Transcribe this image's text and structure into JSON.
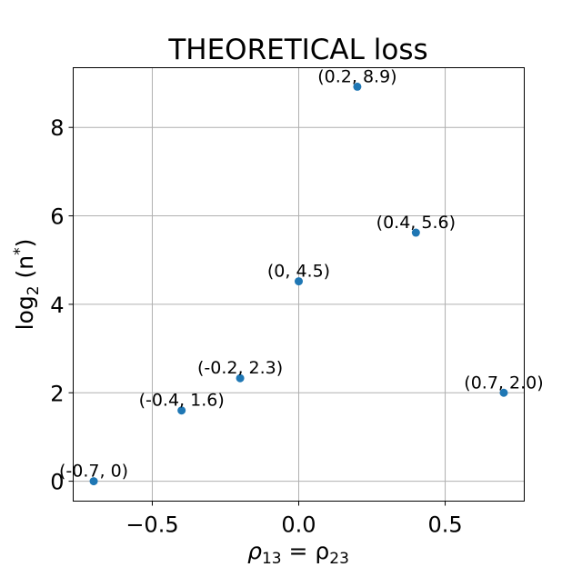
{
  "chart_data": {
    "type": "scatter",
    "title": "THEORETICAL loss",
    "xlabel_prefix": "ρ",
    "xlabel_sub1": "13",
    "xlabel_mid": " = ρ",
    "xlabel_sub2": "23",
    "ylabel_fn": "log",
    "ylabel_fn_sub": "2",
    "ylabel_var": " (n",
    "ylabel_sup": "*",
    "ylabel_close": ")",
    "xlim": [
      -0.77,
      0.77
    ],
    "ylim": [
      -0.45,
      9.35
    ],
    "x_ticks": [
      -0.5,
      0.0,
      0.5
    ],
    "x_tick_labels": [
      "−0.5",
      "0.0",
      "0.5"
    ],
    "y_ticks": [
      0,
      2,
      4,
      6,
      8
    ],
    "y_tick_labels": [
      "0",
      "2",
      "4",
      "6",
      "8"
    ],
    "grid": true,
    "marker_color": "#1f77b4",
    "points": [
      {
        "x": -0.7,
        "y": 0.0,
        "label": "(-0.7, 0)"
      },
      {
        "x": -0.4,
        "y": 1.6,
        "label": "(-0.4, 1.6)"
      },
      {
        "x": -0.2,
        "y": 2.33,
        "label": "(-0.2, 2.3)"
      },
      {
        "x": 0.0,
        "y": 4.52,
        "label": "(0, 4.5)"
      },
      {
        "x": 0.2,
        "y": 8.92,
        "label": "(0.2, 8.9)"
      },
      {
        "x": 0.4,
        "y": 5.62,
        "label": "(0.4, 5.6)"
      },
      {
        "x": 0.7,
        "y": 2.0,
        "label": "(0.7, 2.0)"
      }
    ]
  }
}
